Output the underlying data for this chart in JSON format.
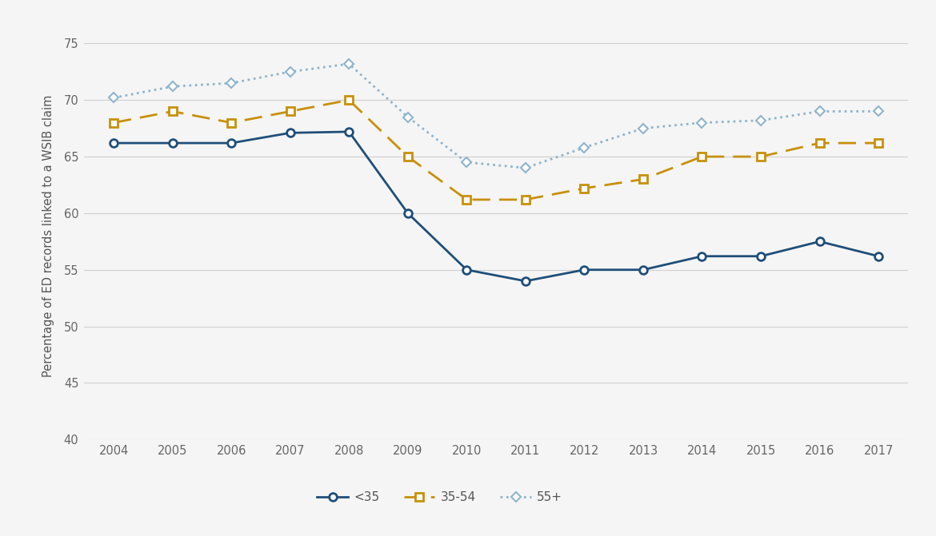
{
  "years": [
    2004,
    2005,
    2006,
    2007,
    2008,
    2009,
    2010,
    2011,
    2012,
    2013,
    2014,
    2015,
    2016,
    2017
  ],
  "lt35": [
    66.2,
    66.2,
    66.2,
    67.1,
    67.2,
    60.0,
    55.0,
    54.0,
    55.0,
    55.0,
    56.2,
    56.2,
    57.5,
    56.2
  ],
  "age35_54": [
    68.0,
    69.0,
    68.0,
    69.0,
    70.0,
    65.0,
    61.2,
    61.2,
    62.2,
    63.0,
    65.0,
    65.0,
    66.2,
    66.2
  ],
  "age55plus": [
    70.2,
    71.2,
    71.5,
    72.5,
    73.2,
    68.5,
    64.5,
    64.0,
    65.8,
    67.5,
    68.0,
    68.2,
    69.0,
    69.0
  ],
  "lt35_color": "#1F4E79",
  "age35_54_color": "#C8900A",
  "age55plus_color": "#8FB4CC",
  "legend_labels": [
    "<35",
    "35-54",
    "55+"
  ],
  "ylabel": "Percentage of ED records linked to a WSIB claim",
  "ylim": [
    40,
    76
  ],
  "yticks": [
    40,
    45,
    50,
    55,
    60,
    65,
    70,
    75
  ],
  "background_color": "#f5f5f5",
  "plot_bg_color": "#f5f5f5",
  "grid_color": "#d0d0d0",
  "tick_color": "#666666",
  "label_color": "#555555"
}
